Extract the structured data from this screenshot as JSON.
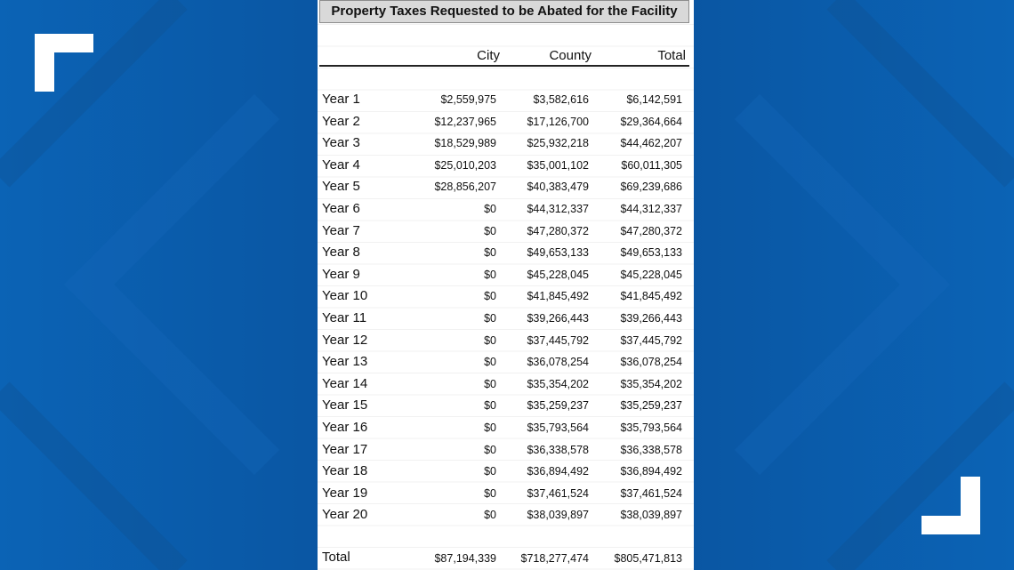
{
  "table": {
    "title": "Property Taxes Requested to be Abated for the Facility",
    "headers": {
      "city": "City",
      "county": "County",
      "total": "Total"
    },
    "rows": [
      {
        "year": "Year 1",
        "city": "$2,559,975",
        "county": "$3,582,616",
        "total": "$6,142,591"
      },
      {
        "year": "Year 2",
        "city": "$12,237,965",
        "county": "$17,126,700",
        "total": "$29,364,664"
      },
      {
        "year": "Year 3",
        "city": "$18,529,989",
        "county": "$25,932,218",
        "total": "$44,462,207"
      },
      {
        "year": "Year 4",
        "city": "$25,010,203",
        "county": "$35,001,102",
        "total": "$60,011,305"
      },
      {
        "year": "Year 5",
        "city": "$28,856,207",
        "county": "$40,383,479",
        "total": "$69,239,686"
      },
      {
        "year": "Year 6",
        "city": "$0",
        "county": "$44,312,337",
        "total": "$44,312,337"
      },
      {
        "year": "Year 7",
        "city": "$0",
        "county": "$47,280,372",
        "total": "$47,280,372"
      },
      {
        "year": "Year 8",
        "city": "$0",
        "county": "$49,653,133",
        "total": "$49,653,133"
      },
      {
        "year": "Year 9",
        "city": "$0",
        "county": "$45,228,045",
        "total": "$45,228,045"
      },
      {
        "year": "Year 10",
        "city": "$0",
        "county": "$41,845,492",
        "total": "$41,845,492"
      },
      {
        "year": "Year 11",
        "city": "$0",
        "county": "$39,266,443",
        "total": "$39,266,443"
      },
      {
        "year": "Year 12",
        "city": "$0",
        "county": "$37,445,792",
        "total": "$37,445,792"
      },
      {
        "year": "Year 13",
        "city": "$0",
        "county": "$36,078,254",
        "total": "$36,078,254"
      },
      {
        "year": "Year 14",
        "city": "$0",
        "county": "$35,354,202",
        "total": "$35,354,202"
      },
      {
        "year": "Year 15",
        "city": "$0",
        "county": "$35,259,237",
        "total": "$35,259,237"
      },
      {
        "year": "Year 16",
        "city": "$0",
        "county": "$35,793,564",
        "total": "$35,793,564"
      },
      {
        "year": "Year 17",
        "city": "$0",
        "county": "$36,338,578",
        "total": "$36,338,578"
      },
      {
        "year": "Year 18",
        "city": "$0",
        "county": "$36,894,492",
        "total": "$36,894,492"
      },
      {
        "year": "Year 19",
        "city": "$0",
        "county": "$37,461,524",
        "total": "$37,461,524"
      },
      {
        "year": "Year 20",
        "city": "$0",
        "county": "$38,039,897",
        "total": "$38,039,897"
      }
    ],
    "totals": {
      "label": "Total",
      "city": "$87,194,339",
      "county": "$718,277,474",
      "total": "$805,471,813"
    }
  },
  "colors": {
    "background_blue": "#0a5aa8",
    "bracket": "#ffffff",
    "title_fill": "#d9d9d9"
  },
  "icons": {
    "top_left": "corner-bracket-icon",
    "bottom_right": "corner-bracket-icon"
  }
}
